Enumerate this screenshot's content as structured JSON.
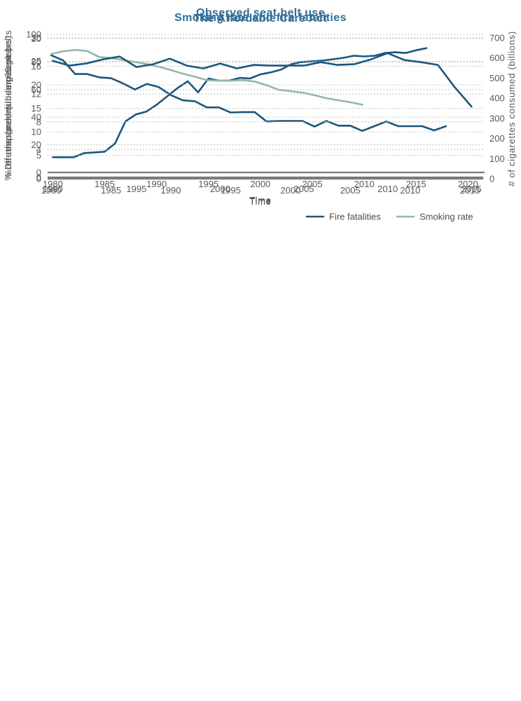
{
  "colors": {
    "title": "#336e98",
    "line_blue": "#1c567d",
    "line_green": "#94b8a9",
    "axis_text": "#58595b"
  },
  "chart_data": [
    {
      "type": "line",
      "title": "Observed seat belt use",
      "xlabel": "Time",
      "ylabel": "% of responders using seat belts",
      "x_ticks": [
        1980,
        1985,
        1990,
        1995,
        2000,
        2005,
        2010,
        2015,
        2020
      ],
      "y_ticks": [
        0,
        20,
        40,
        60,
        80,
        100
      ],
      "xlim": [
        1979.5,
        2021.6
      ],
      "ylim": [
        0,
        100
      ],
      "grid": "horizontal-dotted",
      "legend_position": "none",
      "series": [
        {
          "name": "Observed seat belt use",
          "color": "#1c567d",
          "x": [
            1980,
            1981,
            1982,
            1983,
            1984,
            1985,
            1986,
            1987,
            1988,
            1989,
            1990,
            1991,
            1992,
            1993,
            1994,
            1995,
            1996,
            1997,
            1998,
            1999,
            2000,
            2001,
            2002,
            2003,
            2004,
            2005,
            2006,
            2007,
            2008,
            2009,
            2010,
            2011,
            2012,
            2013,
            2014,
            2015,
            2016
          ],
          "values": [
            11,
            11,
            11,
            14,
            14.5,
            15,
            21,
            37,
            42,
            44,
            49,
            55,
            61,
            66,
            58,
            68,
            66.5,
            66.5,
            68.5,
            68,
            71,
            72.5,
            74.5,
            78.5,
            80,
            80.5,
            81,
            82,
            83,
            84.5,
            84,
            84.5,
            86.5,
            87,
            86.5,
            88.5,
            90
          ]
        }
      ]
    },
    {
      "type": "line",
      "title": "Smoking rate and fire fatalities",
      "xlabel": "Time",
      "ylabel_left": "Deaths (per million people)",
      "ylabel_right": "# of cigarettes consumed (billions)",
      "x_ticks": [
        1980,
        1985,
        1990,
        1995,
        2000,
        2005,
        2010,
        2015
      ],
      "y_ticks_left": [
        0,
        5,
        10,
        15,
        20,
        25,
        30
      ],
      "y_ticks_right": [
        0,
        100,
        200,
        300,
        400,
        500,
        600,
        700
      ],
      "xlim": [
        1979.7,
        2016.1
      ],
      "ylim_left": [
        0,
        30
      ],
      "ylim_right": [
        0,
        700
      ],
      "grid": "horizontal-dotted",
      "legend_position": "bottom-right",
      "series": [
        {
          "name": "Fire fatalities",
          "axis": "left",
          "color": "#1c567d",
          "x": [
            1980,
            1981,
            1982,
            1983,
            1984,
            1985,
            1986,
            1987,
            1988,
            1989,
            1990,
            1991,
            1992,
            1993,
            1994,
            1995,
            1996,
            1997,
            1998,
            1999,
            2000,
            2001,
            2002,
            2003,
            2004,
            2005,
            2006,
            2007,
            2008,
            2009,
            2010,
            2011,
            2012,
            2013
          ],
          "values": [
            26.3,
            25.2,
            22.3,
            22.3,
            21.6,
            21.4,
            20.3,
            19,
            20.2,
            19.5,
            17.8,
            16.7,
            16.5,
            15.2,
            15.2,
            14.1,
            14.2,
            14.2,
            12.2,
            12.3,
            12.3,
            12.3,
            11.1,
            12.3,
            11.3,
            11.3,
            10.2,
            11.2,
            12.2,
            11.2,
            11.2,
            11.2,
            10.3,
            11.2
          ]
        },
        {
          "name": "Smoking rate",
          "axis": "right",
          "color": "#94b8a9",
          "x": [
            1980,
            1981,
            1982,
            1983,
            1984,
            1985,
            1986,
            1987,
            1988,
            1989,
            1990,
            1991,
            1992,
            1993,
            1994,
            1995,
            1996,
            1997,
            1998,
            1999,
            2000,
            2001,
            2002,
            2003,
            2004,
            2005,
            2006
          ],
          "values": [
            620,
            633,
            640,
            635,
            605,
            600,
            590,
            580,
            570,
            556,
            540,
            522,
            507,
            490,
            487,
            487,
            490,
            483,
            465,
            442,
            435,
            428,
            415,
            400,
            390,
            380,
            368
          ]
        }
      ]
    },
    {
      "type": "line",
      "title": "The Affordable Care Act",
      "xlabel": "Time",
      "ylabel": "% of uninsured (under 65 years)",
      "x_ticks": [
        1990,
        1995,
        2000,
        2005,
        2010,
        2015
      ],
      "y_ticks": [
        0,
        4,
        8,
        12,
        16,
        20
      ],
      "xlim": [
        1989.7,
        2015.7
      ],
      "ylim": [
        0,
        20
      ],
      "grid": "horizontal-dotted",
      "legend_position": "none",
      "series": [
        {
          "name": "% of uninsured",
          "color": "#1c567d",
          "x": [
            1990,
            1991,
            1992,
            1993,
            1994,
            1995,
            1996,
            1997,
            1998,
            1999,
            2000,
            2001,
            2002,
            2003,
            2004,
            2005,
            2006,
            2007,
            2008,
            2009,
            2010,
            2011,
            2012,
            2013,
            2014,
            2015
          ],
          "values": [
            16.8,
            16.1,
            16.4,
            17,
            17.4,
            15.9,
            16.3,
            17.1,
            16.1,
            15.7,
            16.4,
            15.7,
            16.2,
            16.1,
            16.1,
            16.1,
            16.6,
            16.2,
            16.3,
            17,
            17.9,
            16.9,
            16.6,
            16.2,
            13,
            10.2
          ]
        }
      ]
    }
  ]
}
